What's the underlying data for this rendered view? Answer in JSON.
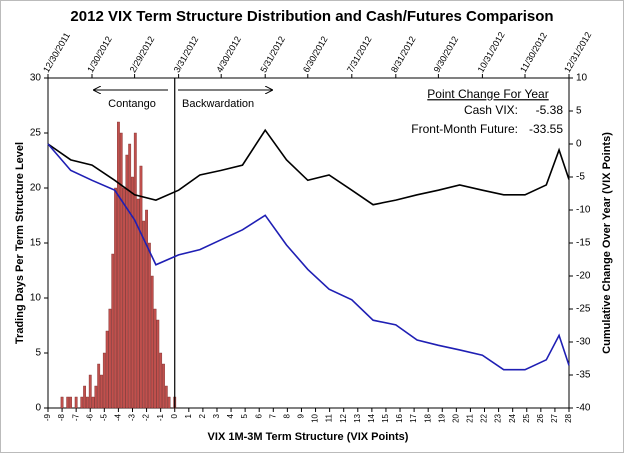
{
  "chart_data": [
    {
      "type": "bar",
      "title": "2012 VIX Term Structure Distribution and Cash/Futures Comparison",
      "xlabel": "VIX 1M-3M Term Structure (VIX Points)",
      "ylabel": "Trading Days Per Term Structure Level",
      "color": "#c0504d",
      "x": [
        -8.0,
        -7.8,
        -7.6,
        -7.4,
        -7.2,
        -7.0,
        -6.8,
        -6.6,
        -6.4,
        -6.2,
        -6.0,
        -5.8,
        -5.6,
        -5.4,
        -5.2,
        -5.0,
        -4.8,
        -4.6,
        -4.4,
        -4.2,
        -4.0,
        -3.8,
        -3.6,
        -3.4,
        -3.2,
        -3.0,
        -2.8,
        -2.6,
        -2.4,
        -2.2,
        -2.0,
        -1.8,
        -1.6,
        -1.4,
        -1.2,
        -1.0,
        -0.8,
        -0.6,
        -0.4,
        -0.2,
        0.0
      ],
      "values": [
        1,
        0,
        1,
        1,
        0,
        1,
        0,
        1,
        2,
        1,
        3,
        1,
        2,
        4,
        3,
        5,
        7,
        9,
        14,
        20,
        26,
        25,
        20,
        23,
        24,
        21,
        25,
        19,
        22,
        17,
        18,
        15,
        12,
        9,
        8,
        5,
        4,
        2,
        1,
        0,
        1
      ],
      "xlim": [
        -9,
        28
      ],
      "xticks": [
        -9,
        -8,
        -7,
        -6,
        -5,
        -4,
        -3,
        -2,
        -1,
        0,
        1,
        2,
        3,
        4,
        5,
        6,
        7,
        8,
        9,
        10,
        11,
        12,
        13,
        14,
        15,
        16,
        17,
        18,
        19,
        20,
        21,
        22,
        23,
        24,
        25,
        26,
        27,
        28
      ],
      "ylim": [
        0,
        30
      ],
      "yticks": [
        0,
        5,
        10,
        15,
        20,
        25,
        30
      ],
      "divider": 0,
      "annotations": {
        "left": "Contango",
        "right": "Backwardation"
      }
    },
    {
      "type": "line",
      "y2label": "Cumulative Change Over Year (VIX Points)",
      "legend_title": "Point Change For Year",
      "x": [
        "12/30/2011",
        "1/15/2012",
        "1/30/2012",
        "2/15/2012",
        "2/29/2012",
        "3/15/2012",
        "3/31/2012",
        "4/15/2012",
        "4/30/2012",
        "5/15/2012",
        "5/31/2012",
        "6/15/2012",
        "6/30/2012",
        "7/15/2012",
        "7/31/2012",
        "8/15/2012",
        "8/31/2012",
        "9/15/2012",
        "9/30/2012",
        "10/15/2012",
        "10/31/2012",
        "11/15/2012",
        "11/30/2012",
        "12/15/2012",
        "12/24/2012",
        "12/31/2012"
      ],
      "xlim": [
        "12/30/2011",
        "12/31/2012"
      ],
      "xticks": [
        "12/30/2011",
        "1/30/2012",
        "2/29/2012",
        "3/31/2012",
        "4/30/2012",
        "5/31/2012",
        "6/30/2012",
        "7/31/2012",
        "8/31/2012",
        "9/30/2012",
        "10/31/2012",
        "11/30/2012",
        "12/31/2012"
      ],
      "y2lim": [
        -40,
        10
      ],
      "y2ticks": [
        -40,
        -35,
        -30,
        -25,
        -20,
        -15,
        -10,
        -5,
        0,
        5,
        10
      ],
      "series": [
        {
          "name": "Cash VIX:",
          "color": "#000000",
          "axis": "y2",
          "change": -5.38,
          "values": [
            0,
            -2.4,
            -3.2,
            -5.5,
            -7.7,
            -8.5,
            -7,
            -4.7,
            -4,
            -3.2,
            2.1,
            -2.4,
            -5.5,
            -4.7,
            -7,
            -9.2,
            -8.5,
            -7.7,
            -7,
            -6.2,
            -7,
            -7.7,
            -7.7,
            -6.2,
            -0.9,
            -5.38
          ]
        },
        {
          "name": "Front-Month Future:",
          "color": "#1f1fb4",
          "axis": "y2",
          "change": -33.55,
          "values": [
            0,
            -4,
            -5.5,
            -7,
            -11.5,
            -18.3,
            -16.8,
            -16,
            -14.5,
            -13,
            -10.8,
            -15.3,
            -19,
            -22,
            -23.6,
            -26.7,
            -27.4,
            -29.7,
            -30.5,
            -31.2,
            -32,
            -34.2,
            -34.2,
            -32.7,
            -29,
            -33.55
          ]
        }
      ]
    }
  ]
}
